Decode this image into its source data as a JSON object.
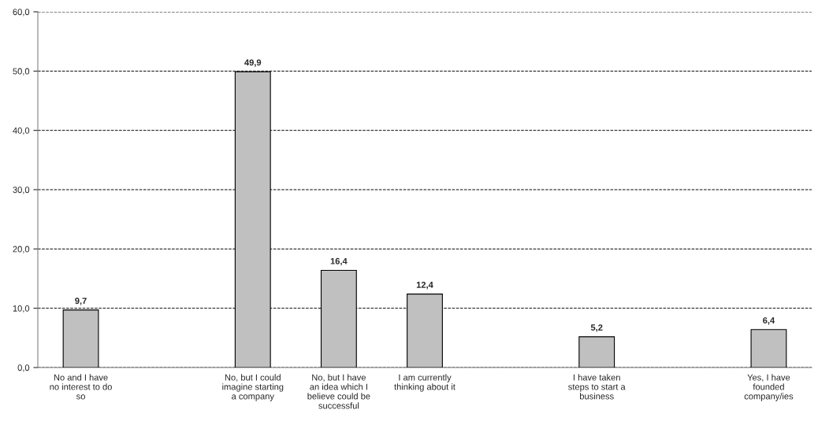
{
  "chart_data": {
    "type": "bar",
    "categories": [
      "No and I have\nno interest to do\nso",
      null,
      "No, but I could\nimagine starting\na company",
      "No, but I have\nan idea which I\nbelieve could be\nsuccessful",
      "I am currently\nthinking about it",
      null,
      "I have taken\nsteps to start a\nbusiness",
      null,
      "Yes, I have\nfounded\ncompany/ies"
    ],
    "values": [
      9.7,
      null,
      49.9,
      16.4,
      12.4,
      null,
      5.2,
      null,
      6.4
    ],
    "value_labels": [
      "9,7",
      null,
      "49,9",
      "16,4",
      "12,4",
      null,
      "5,2",
      null,
      "6,4"
    ],
    "color": "#c0c0c0",
    "ylim": [
      0,
      60
    ],
    "yticks": [
      {
        "value": 0,
        "label": "0,0"
      },
      {
        "value": 10,
        "label": "10,0"
      },
      {
        "value": 20,
        "label": "20,0"
      },
      {
        "value": 30,
        "label": "30,0"
      },
      {
        "value": 40,
        "label": "40,0"
      },
      {
        "value": 50,
        "label": "50,0"
      },
      {
        "value": 60,
        "label": "60,0"
      }
    ],
    "grid": "y",
    "line_style": "dashed",
    "legend": false
  }
}
